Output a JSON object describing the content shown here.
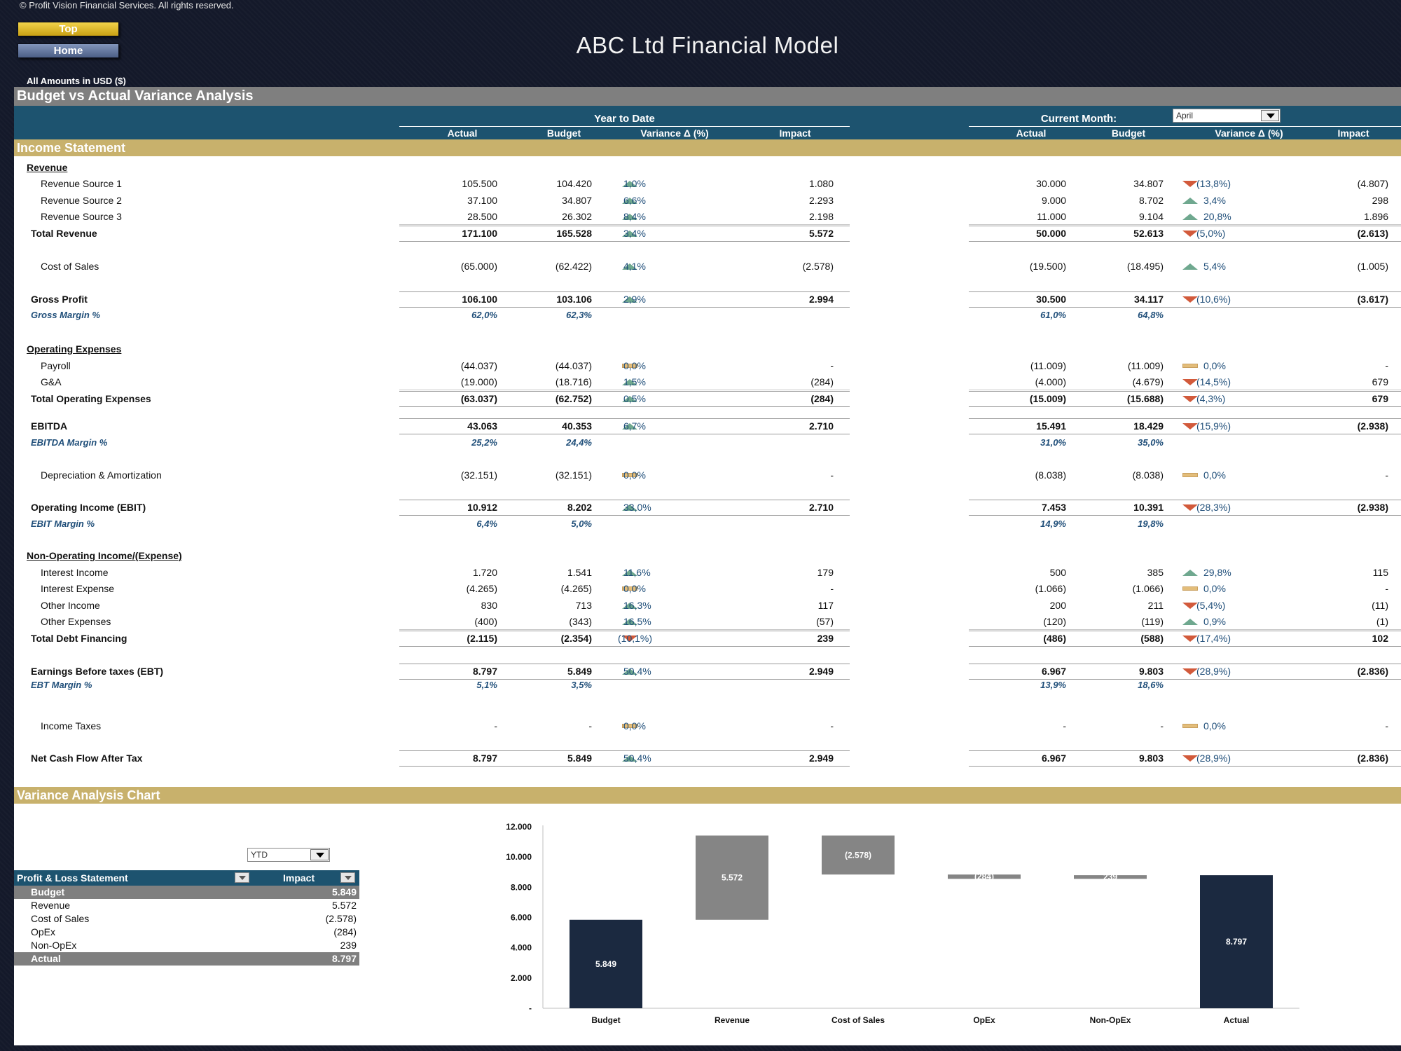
{
  "copyright": "© Profit Vision Financial Services. All rights reserved.",
  "nav": {
    "top_label": "Top",
    "home_label": "Home"
  },
  "app_title": "ABC Ltd Financial Model",
  "amounts_note": "All Amounts in  USD ($)",
  "section_title": "Budget vs Actual Variance Analysis",
  "header": {
    "ytd_label": "Year to Date",
    "current_month_label": "Current Month:",
    "month_value": "April",
    "columns": [
      "Actual",
      "Budget",
      "Variance Δ  (%)",
      "Impact"
    ]
  },
  "income_statement_title": "Income Statement",
  "rows": [
    {
      "type": "hdr",
      "label": "Revenue"
    },
    {
      "type": "sub",
      "label": "Revenue Source 1",
      "ytd": [
        "105.500",
        "104.420",
        "1,0%",
        "1.080"
      ],
      "ytd_dir": "up",
      "cm": [
        "30.000",
        "34.807",
        "(13,8%)",
        "(4.807)"
      ],
      "cm_dir": "down"
    },
    {
      "type": "sub",
      "label": "Revenue Source 2",
      "ytd": [
        "37.100",
        "34.807",
        "6,6%",
        "2.293"
      ],
      "ytd_dir": "up",
      "cm": [
        "9.000",
        "8.702",
        "3,4%",
        "298"
      ],
      "cm_dir": "up"
    },
    {
      "type": "sub",
      "label": "Revenue Source 3",
      "ytd": [
        "28.500",
        "26.302",
        "8,4%",
        "2.198"
      ],
      "ytd_dir": "up",
      "cm": [
        "11.000",
        "9.104",
        "20,8%",
        "1.896"
      ],
      "cm_dir": "up"
    },
    {
      "type": "total",
      "label": "Total Revenue",
      "ytd": [
        "171.100",
        "165.528",
        "3,4%",
        "5.572"
      ],
      "ytd_dir": "up",
      "cm": [
        "50.000",
        "52.613",
        "(5,0%)",
        "(2.613)"
      ],
      "cm_dir": "down"
    },
    {
      "type": "sub",
      "label": "Cost of Sales",
      "ytd": [
        "(65.000)",
        "(62.422)",
        "4,1%",
        "(2.578)"
      ],
      "ytd_dir": "up",
      "cm": [
        "(19.500)",
        "(18.495)",
        "5,4%",
        "(1.005)"
      ],
      "cm_dir": "up"
    },
    {
      "type": "total",
      "label": "Gross Profit",
      "ytd": [
        "106.100",
        "103.106",
        "2,9%",
        "2.994"
      ],
      "ytd_dir": "up",
      "cm": [
        "30.500",
        "34.117",
        "(10,6%)",
        "(3.617)"
      ],
      "cm_dir": "down"
    },
    {
      "type": "pct",
      "label": "Gross Margin %",
      "ytd": [
        "62,0%",
        "62,3%"
      ],
      "cm": [
        "61,0%",
        "64,8%"
      ]
    },
    {
      "type": "hdr",
      "label": "Operating Expenses"
    },
    {
      "type": "sub",
      "label": "Payroll",
      "ytd": [
        "(44.037)",
        "(44.037)",
        "0,0%",
        "-"
      ],
      "ytd_dir": "flat",
      "cm": [
        "(11.009)",
        "(11.009)",
        "0,0%",
        "-"
      ],
      "cm_dir": "flat"
    },
    {
      "type": "sub",
      "label": "G&A",
      "ytd": [
        "(19.000)",
        "(18.716)",
        "1,5%",
        "(284)"
      ],
      "ytd_dir": "up",
      "cm": [
        "(4.000)",
        "(4.679)",
        "(14,5%)",
        "679"
      ],
      "cm_dir": "down"
    },
    {
      "type": "total",
      "label": "Total Operating Expenses",
      "ytd": [
        "(63.037)",
        "(62.752)",
        "0,5%",
        "(284)"
      ],
      "ytd_dir": "up",
      "cm": [
        "(15.009)",
        "(15.688)",
        "(4,3%)",
        "679"
      ],
      "cm_dir": "down"
    },
    {
      "type": "total",
      "label": "EBITDA",
      "ytd": [
        "43.063",
        "40.353",
        "6,7%",
        "2.710"
      ],
      "ytd_dir": "up",
      "cm": [
        "15.491",
        "18.429",
        "(15,9%)",
        "(2.938)"
      ],
      "cm_dir": "down"
    },
    {
      "type": "pct",
      "label": "EBITDA Margin %",
      "ytd": [
        "25,2%",
        "24,4%"
      ],
      "cm": [
        "31,0%",
        "35,0%"
      ]
    },
    {
      "type": "sub",
      "label": "Depreciation & Amortization",
      "ytd": [
        "(32.151)",
        "(32.151)",
        "0,0%",
        "-"
      ],
      "ytd_dir": "flat",
      "cm": [
        "(8.038)",
        "(8.038)",
        "0,0%",
        "-"
      ],
      "cm_dir": "flat"
    },
    {
      "type": "total",
      "label": "Operating Income (EBIT)",
      "ytd": [
        "10.912",
        "8.202",
        "33,0%",
        "2.710"
      ],
      "ytd_dir": "up",
      "cm": [
        "7.453",
        "10.391",
        "(28,3%)",
        "(2.938)"
      ],
      "cm_dir": "down"
    },
    {
      "type": "pct",
      "label": "EBIT Margin %",
      "ytd": [
        "6,4%",
        "5,0%"
      ],
      "cm": [
        "14,9%",
        "19,8%"
      ]
    },
    {
      "type": "hdr",
      "label": "Non-Operating Income/(Expense)"
    },
    {
      "type": "sub",
      "label": "Interest Income",
      "ytd": [
        "1.720",
        "1.541",
        "11,6%",
        "179"
      ],
      "ytd_dir": "up",
      "cm": [
        "500",
        "385",
        "29,8%",
        "115"
      ],
      "cm_dir": "up"
    },
    {
      "type": "sub",
      "label": "Interest Expense",
      "ytd": [
        "(4.265)",
        "(4.265)",
        "0,0%",
        "-"
      ],
      "ytd_dir": "flat",
      "cm": [
        "(1.066)",
        "(1.066)",
        "0,0%",
        "-"
      ],
      "cm_dir": "flat"
    },
    {
      "type": "sub",
      "label": "Other Income",
      "ytd": [
        "830",
        "713",
        "16,3%",
        "117"
      ],
      "ytd_dir": "up",
      "cm": [
        "200",
        "211",
        "(5,4%)",
        "(11)"
      ],
      "cm_dir": "down"
    },
    {
      "type": "sub",
      "label": "Other Expenses",
      "ytd": [
        "(400)",
        "(343)",
        "16,5%",
        "(57)"
      ],
      "ytd_dir": "up",
      "cm": [
        "(120)",
        "(119)",
        "0,9%",
        "(1)"
      ],
      "cm_dir": "up"
    },
    {
      "type": "total",
      "label": "Total Debt Financing",
      "ytd": [
        "(2.115)",
        "(2.354)",
        "(10,1%)",
        "239"
      ],
      "ytd_dir": "down",
      "cm": [
        "(486)",
        "(588)",
        "(17,4%)",
        "102"
      ],
      "cm_dir": "down"
    },
    {
      "type": "total",
      "label": "Earnings Before taxes (EBT)",
      "ytd": [
        "8.797",
        "5.849",
        "50,4%",
        "2.949"
      ],
      "ytd_dir": "up",
      "cm": [
        "6.967",
        "9.803",
        "(28,9%)",
        "(2.836)"
      ],
      "cm_dir": "down"
    },
    {
      "type": "pct",
      "label": "EBT Margin %",
      "ytd": [
        "5,1%",
        "3,5%"
      ],
      "cm": [
        "13,9%",
        "18,6%"
      ]
    },
    {
      "type": "sub",
      "label": "Income Taxes",
      "ytd": [
        "-",
        "-",
        "0,0%",
        "-"
      ],
      "ytd_dir": "flat",
      "cm": [
        "-",
        "-",
        "0,0%",
        "-"
      ],
      "cm_dir": "flat"
    },
    {
      "type": "total",
      "label": "Net Cash Flow After Tax",
      "ytd": [
        "8.797",
        "5.849",
        "50,4%",
        "2.949"
      ],
      "ytd_dir": "up",
      "cm": [
        "6.967",
        "9.803",
        "(28,9%)",
        "(2.836)"
      ],
      "cm_dir": "down"
    }
  ],
  "chart_section_title": "Variance Analysis Chart",
  "period_select": "YTD",
  "pl_table": {
    "col1": "Profit & Loss Statement",
    "col2": "Impact",
    "rows": [
      {
        "name": "Budget",
        "value": "5.849",
        "hl": true
      },
      {
        "name": "Revenue",
        "value": "5.572",
        "hl": false
      },
      {
        "name": "Cost of Sales",
        "value": "(2.578)",
        "hl": false
      },
      {
        "name": "OpEx",
        "value": "(284)",
        "hl": false
      },
      {
        "name": "Non-OpEx",
        "value": "239",
        "hl": false
      },
      {
        "name": "Actual",
        "value": "8.797",
        "hl": true
      }
    ]
  },
  "colors": {
    "navy": "#1b2940",
    "gray": "#858585",
    "up": "#6fa88f",
    "down": "#d25a3b",
    "flat": "#e3bd7a"
  },
  "chart_data": {
    "type": "waterfall",
    "categories": [
      "Budget",
      "Revenue",
      "Cost of Sales",
      "OpEx",
      "Non-OpEx",
      "Actual"
    ],
    "values": [
      5849,
      5572,
      -2578,
      -284,
      239,
      8797
    ],
    "labels": [
      "5.849",
      "5.572",
      "(2.578)",
      "(284)",
      "239",
      "8.797"
    ],
    "ylim": [
      0,
      12000
    ],
    "yticks": [
      "-",
      "2.000",
      "4.000",
      "6.000",
      "8.000",
      "10.000",
      "12.000"
    ],
    "title": "",
    "xlabel": "",
    "ylabel": ""
  }
}
